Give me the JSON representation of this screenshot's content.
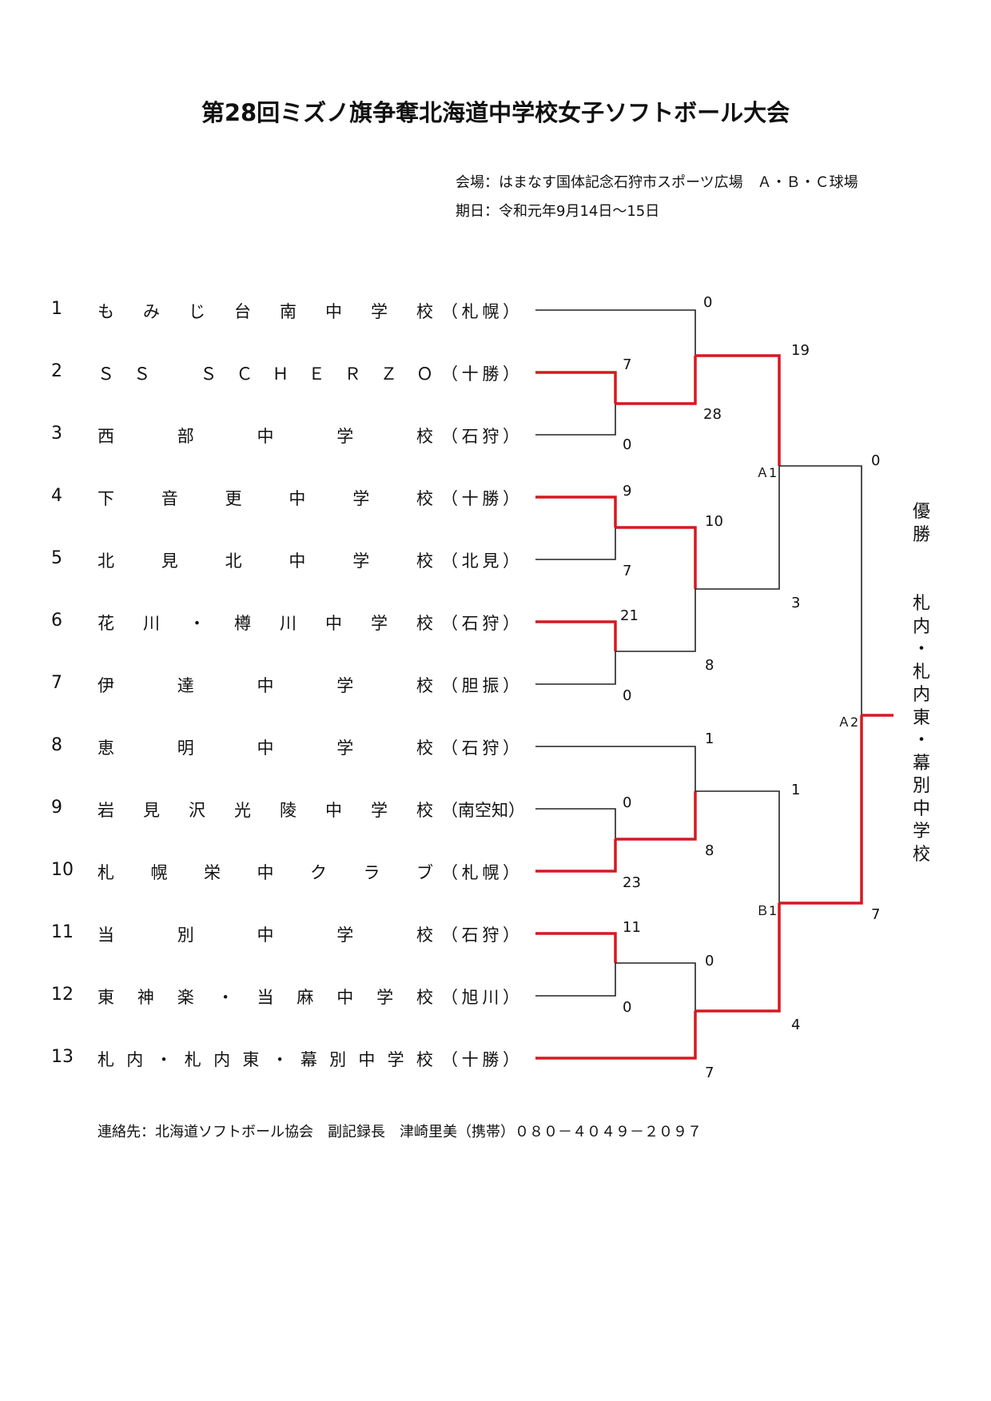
{
  "title": "第28回ミズノ旗争奪北海道中学校女子ソフトボール大会",
  "venue": "会場：はまなす国体記念石狩市スポーツ広場　Ａ・Ｂ・Ｃ球場",
  "date": "期日：令和元年9月14日～15日",
  "teams": [
    {
      "no": "1",
      "name_chars": [
        "も",
        "み",
        "じ",
        "台",
        "南",
        "中",
        "学",
        "校"
      ],
      "region": [
        "（",
        "札",
        "幌",
        "）"
      ]
    },
    {
      "no": "2",
      "name_chars": [
        "Ｓ",
        "Ｓ",
        "",
        "Ｓ",
        "Ｃ",
        "Ｈ",
        "Ｅ",
        "Ｒ",
        "Ｚ",
        "Ｏ"
      ],
      "region": [
        "（",
        "十",
        "勝",
        "）"
      ]
    },
    {
      "no": "3",
      "name_chars": [
        "西",
        "部",
        "中",
        "学",
        "校"
      ],
      "region": [
        "（",
        "石",
        "狩",
        "）"
      ]
    },
    {
      "no": "4",
      "name_chars": [
        "下",
        "音",
        "更",
        "中",
        "学",
        "校"
      ],
      "region": [
        "（",
        "十",
        "勝",
        "）"
      ]
    },
    {
      "no": "5",
      "name_chars": [
        "北",
        "見",
        "北",
        "中",
        "学",
        "校"
      ],
      "region": [
        "（",
        "北",
        "見",
        "）"
      ]
    },
    {
      "no": "6",
      "name_chars": [
        "花",
        "川",
        "・",
        "樽",
        "川",
        "中",
        "学",
        "校"
      ],
      "region": [
        "（",
        "石",
        "狩",
        "）"
      ]
    },
    {
      "no": "7",
      "name_chars": [
        "伊",
        "達",
        "中",
        "学",
        "校"
      ],
      "region": [
        "（",
        "胆",
        "振",
        "）"
      ]
    },
    {
      "no": "8",
      "name_chars": [
        "恵",
        "明",
        "中",
        "学",
        "校"
      ],
      "region": [
        "（",
        "石",
        "狩",
        "）"
      ]
    },
    {
      "no": "9",
      "name_chars": [
        "岩",
        "見",
        "沢",
        "光",
        "陵",
        "中",
        "学",
        "校"
      ],
      "region": [
        "（",
        "南空知",
        "）"
      ]
    },
    {
      "no": "10",
      "name_chars": [
        "札",
        "幌",
        "栄",
        "中",
        "ク",
        "ラ",
        "ブ"
      ],
      "region": [
        "（",
        "札",
        "幌",
        "）"
      ]
    },
    {
      "no": "11",
      "name_chars": [
        "当",
        "別",
        "中",
        "学",
        "校"
      ],
      "region": [
        "（",
        "石",
        "狩",
        "）"
      ]
    },
    {
      "no": "12",
      "name_chars": [
        "東",
        "神",
        "楽",
        "・",
        "当",
        "麻",
        "中",
        "学",
        "校"
      ],
      "region": [
        "（",
        "旭",
        "川",
        "）"
      ]
    },
    {
      "no": "13",
      "name_chars": [
        "札",
        "内",
        "・",
        "札",
        "内",
        "東",
        "・",
        "幕",
        "別",
        "中",
        "学",
        "校"
      ],
      "region": [
        "（",
        "十",
        "勝",
        "）"
      ]
    }
  ],
  "scores": {
    "r1_t2": "7",
    "r1_t3": "0",
    "r1_t4": "9",
    "r1_t5": "7",
    "r1_t6": "21",
    "r1_t7": "0",
    "r1_t9": "0",
    "r1_t10": "23",
    "r1_t11": "11",
    "r1_t12": "0",
    "r2_t1": "0",
    "r2_w23": "28",
    "r2_w45": "10",
    "r2_w67": "8",
    "r2_t8": "1",
    "r2_w910": "8",
    "r2_w1112": "0",
    "r2_t13": "7",
    "r3_top1": "19",
    "r3_top2": "3",
    "r3_bot1": "1",
    "r3_bot2": "4",
    "final_top": "0",
    "final_bot": "7"
  },
  "match_labels": {
    "a1": "Ａ1",
    "b1": "Ｂ1",
    "a2": "Ａ2"
  },
  "champion_label": "優勝",
  "champion_name": "札内・札内東・幕別中学校",
  "contact": "連絡先：北海道ソフトボール協会　副記録長　津崎里美（携帯）０８０－４０４９－２０９７",
  "colors": {
    "winner_line": "#d51920",
    "loser_line": "#222222"
  }
}
